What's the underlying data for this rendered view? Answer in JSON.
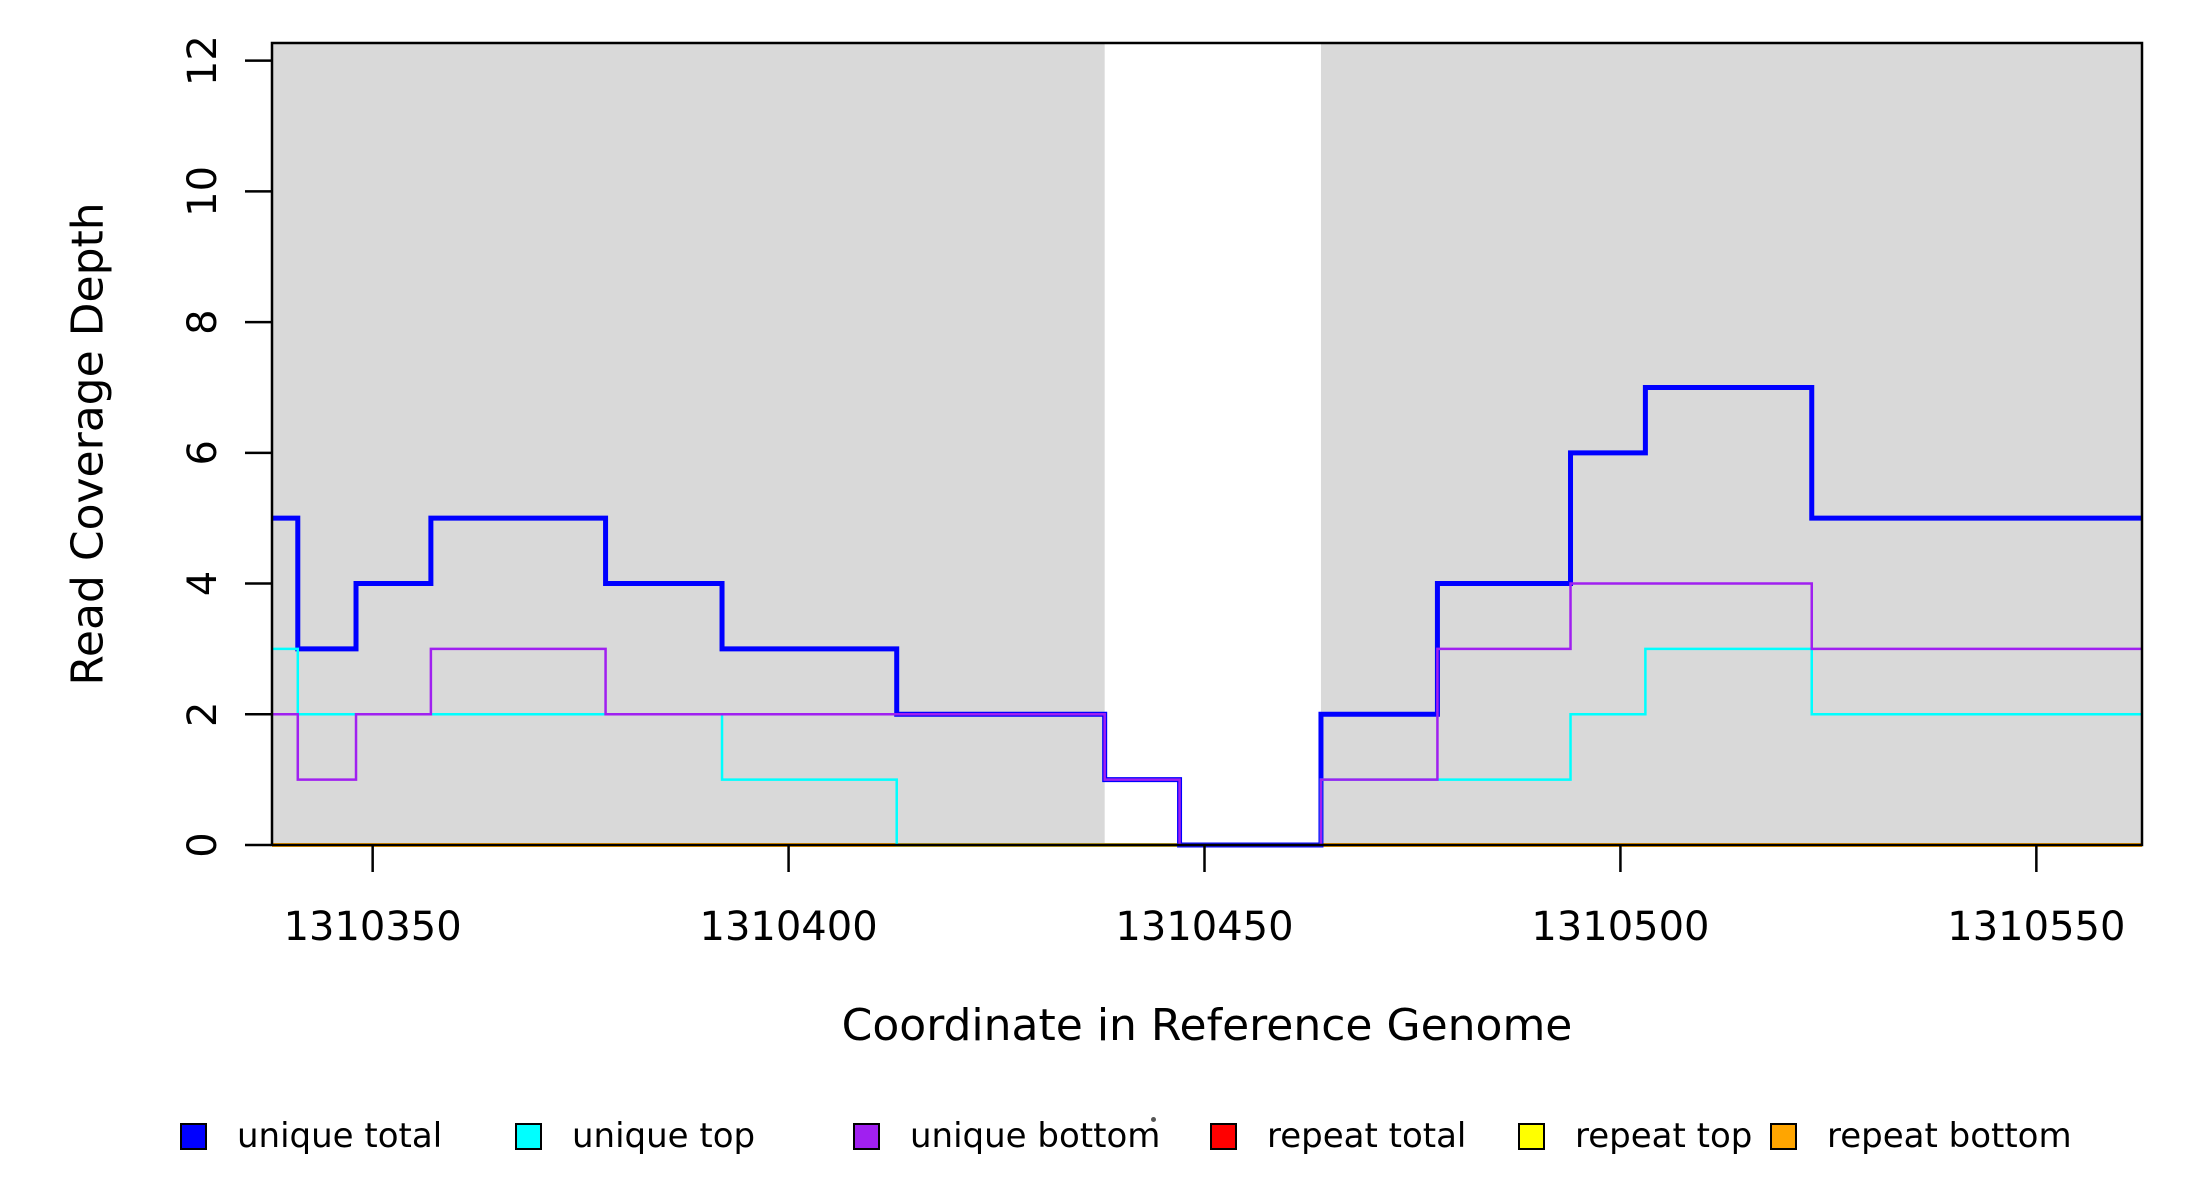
{
  "figure": {
    "background_color": "#FFFFFF",
    "plot_band_color": "#D9D9D9"
  },
  "y_axis": {
    "label": "Read Coverage Depth",
    "tick_labels": [
      "0",
      "2",
      "4",
      "6",
      "8",
      "10",
      "12"
    ]
  },
  "x_axis": {
    "label": "Coordinate in Reference Genome",
    "tick_labels": [
      "1310350",
      "1310400",
      "1310450",
      "1310500",
      "1310550"
    ]
  },
  "legend": {
    "items": [
      {
        "label": "unique total",
        "color": "#0000FF"
      },
      {
        "label": "unique top",
        "color": "#00FFFF"
      },
      {
        "label": "unique bottom",
        "color": "#A020F0"
      },
      {
        "label": "repeat total",
        "color": "#FF0000"
      },
      {
        "label": "repeat top",
        "color": "#FFFF00"
      },
      {
        "label": "repeat bottom",
        "color": "#FFA500"
      }
    ]
  },
  "chart_data": {
    "type": "line",
    "subtype": "step-coverage",
    "title": "",
    "xlabel": "Coordinate in Reference Genome",
    "ylabel": "Read Coverage Depth",
    "xlim": [
      1310337.9,
      1310562.7
    ],
    "ylim": [
      0,
      12.27
    ],
    "x_ticks": [
      1310350,
      1310400,
      1310450,
      1310500,
      1310550
    ],
    "y_ticks": [
      0,
      2,
      4,
      6,
      8,
      10,
      12
    ],
    "grid": false,
    "legend_position": "bottom",
    "shaded_regions": [
      {
        "name": "unique-region-left",
        "x0": 1310337.9,
        "x1": 1310438,
        "color": "#D9D9D9"
      },
      {
        "name": "unique-region-right",
        "x0": 1310464,
        "x1": 1310562.7,
        "color": "#D9D9D9"
      }
    ],
    "series": [
      {
        "name": "repeat total",
        "color": "#FF0000",
        "width": 3,
        "steps": [
          [
            1310337.9,
            0
          ],
          [
            1310562.7,
            0
          ]
        ]
      },
      {
        "name": "repeat top",
        "color": "#FFFF00",
        "width": 3,
        "steps": [
          [
            1310337.9,
            0
          ],
          [
            1310562.7,
            0
          ]
        ]
      },
      {
        "name": "repeat bottom",
        "color": "#FFA500",
        "width": 4,
        "steps": [
          [
            1310337.9,
            0
          ],
          [
            1310562.7,
            0
          ]
        ]
      },
      {
        "name": "unique total",
        "color": "#0000FF",
        "width": 5,
        "steps": [
          [
            1310337.9,
            5
          ],
          [
            1310341,
            3
          ],
          [
            1310348,
            4
          ],
          [
            1310357,
            5
          ],
          [
            1310378,
            4
          ],
          [
            1310392,
            3
          ],
          [
            1310413,
            2
          ],
          [
            1310438,
            1
          ],
          [
            1310447,
            0
          ],
          [
            1310464,
            2
          ],
          [
            1310478,
            4
          ],
          [
            1310494,
            6
          ],
          [
            1310503,
            7
          ],
          [
            1310523,
            5
          ],
          [
            1310562.7,
            5
          ]
        ]
      },
      {
        "name": "unique top",
        "color": "#00FFFF",
        "width": 2.5,
        "steps": [
          [
            1310337.9,
            3
          ],
          [
            1310341,
            2
          ],
          [
            1310392,
            1
          ],
          [
            1310413,
            0
          ],
          [
            1310464,
            1
          ],
          [
            1310494,
            2
          ],
          [
            1310503,
            3
          ],
          [
            1310523,
            2
          ],
          [
            1310562.7,
            2
          ]
        ]
      },
      {
        "name": "unique bottom",
        "color": "#A020F0",
        "width": 2.5,
        "steps": [
          [
            1310337.9,
            2
          ],
          [
            1310341,
            1
          ],
          [
            1310348,
            2
          ],
          [
            1310357,
            3
          ],
          [
            1310378,
            2
          ],
          [
            1310438,
            1
          ],
          [
            1310447,
            0
          ],
          [
            1310464,
            1
          ],
          [
            1310478,
            3
          ],
          [
            1310494,
            4
          ],
          [
            1310523,
            3
          ],
          [
            1310562.7,
            3
          ]
        ]
      }
    ]
  }
}
